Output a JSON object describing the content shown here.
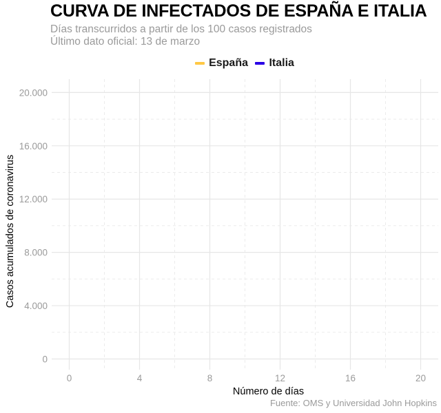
{
  "chart_data": {
    "type": "line",
    "title": "CURVA DE INFECTADOS DE ESPAÑA E ITALIA",
    "subtitle_lines": [
      "Días transcurridos a partir de los 100 casos registrados",
      "Último dato oficial: 13 de marzo"
    ],
    "xlabel": "Número de días",
    "ylabel": "Casos acumulados de coronavirus",
    "caption": "Fuente: OMS y Universidad John Hopkins",
    "xlim": [
      -1,
      21
    ],
    "ylim": [
      -800,
      21000
    ],
    "x_ticks": [
      0,
      4,
      8,
      12,
      16,
      20
    ],
    "x_tick_labels": [
      "0",
      "4",
      "8",
      "12",
      "16",
      "20"
    ],
    "y_ticks": [
      0,
      4000,
      8000,
      12000,
      16000,
      20000
    ],
    "y_tick_labels": [
      "0",
      "4.000",
      "8.000",
      "12.000",
      "16.000",
      "20.000"
    ],
    "grid": true,
    "legend_position": "top",
    "series": [
      {
        "name": "España",
        "color": "#FFC845",
        "x": [],
        "y": []
      },
      {
        "name": "Italia",
        "color": "#2A00E6",
        "x": [],
        "y": []
      }
    ]
  }
}
